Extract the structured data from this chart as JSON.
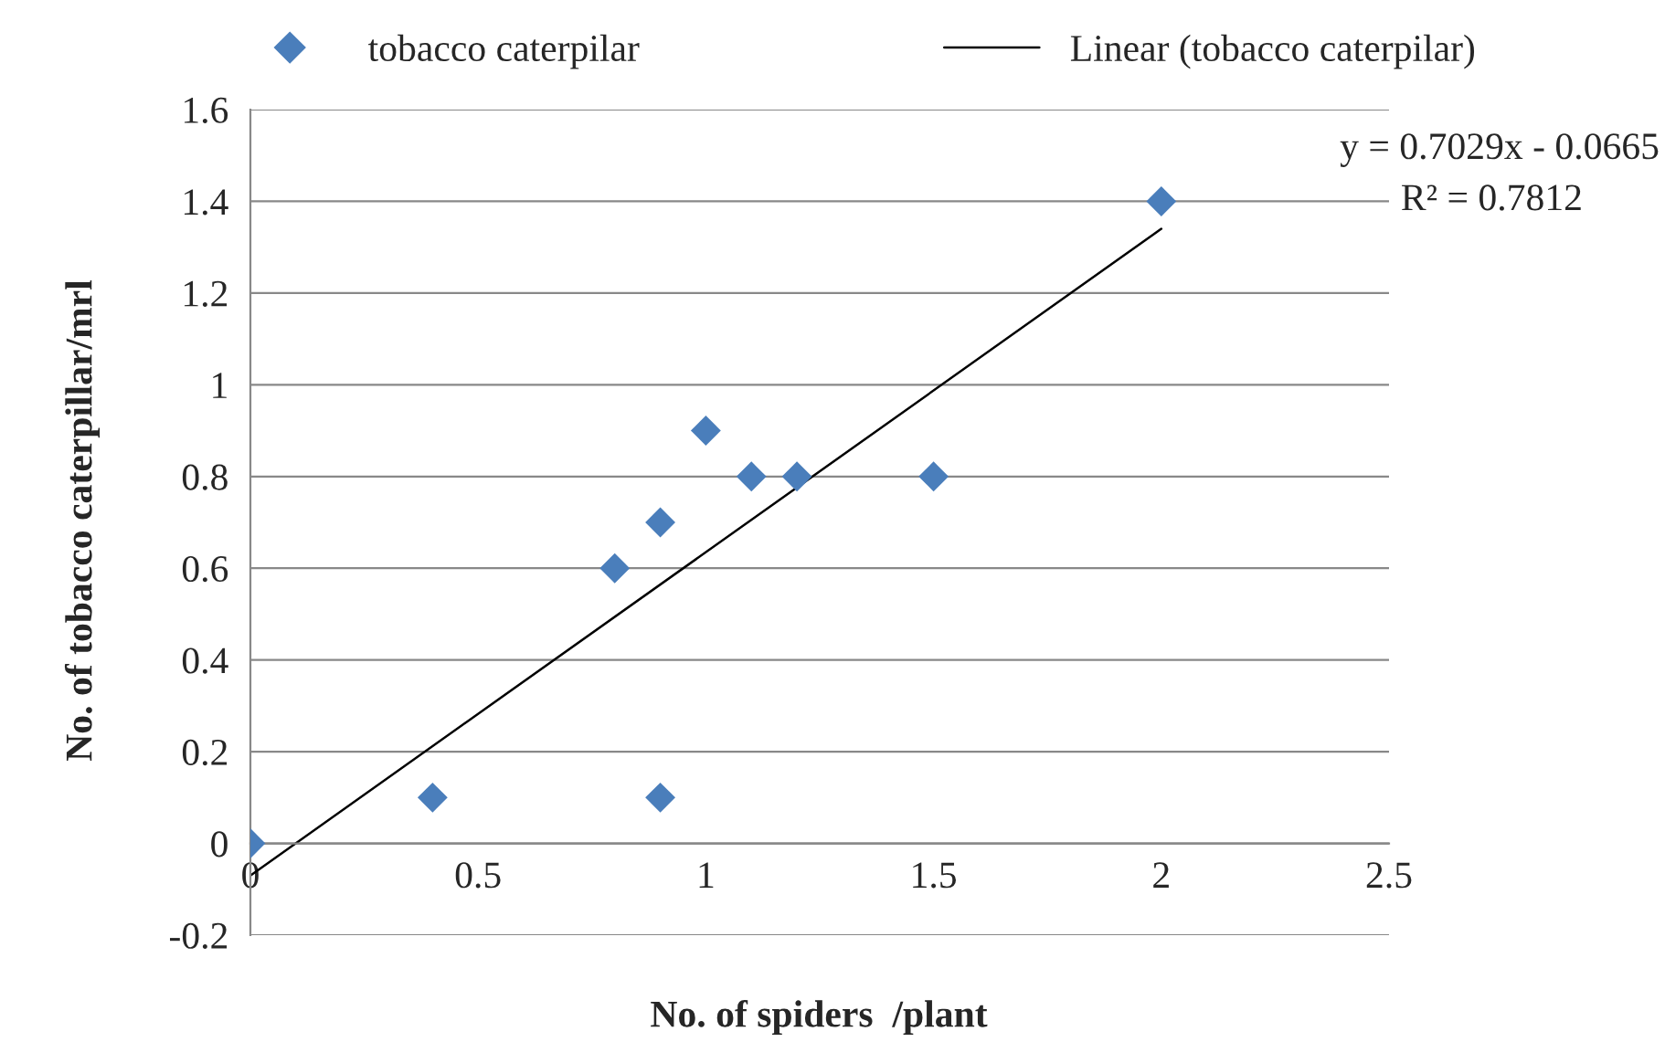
{
  "chart_data": {
    "type": "scatter",
    "xlabel": "No. of spiders  /plant",
    "ylabel": "No. of tobacco caterpillar/mrl",
    "series": [
      {
        "name": "tobacco caterpilar",
        "color": "#4a7ebb",
        "marker": "diamond",
        "x": [
          0,
          0.4,
          0.8,
          0.9,
          0.9,
          1,
          1.1,
          1.2,
          1.5,
          2
        ],
        "values": [
          0,
          0.1,
          0.6,
          0.7,
          0.1,
          0.9,
          0.8,
          0.8,
          0.8,
          1.4
        ]
      },
      {
        "name": "Linear (tobacco caterpilar)",
        "type": "line",
        "color": "#000000",
        "line_style": "solid",
        "x": [
          0,
          2
        ],
        "values": [
          -0.07,
          1.34
        ]
      }
    ],
    "annotations": [
      {
        "text": "y = 0.7029x - 0.0665"
      },
      {
        "text": "R² = 0.7812"
      }
    ],
    "xlim": [
      0,
      2.5
    ],
    "xticks": [
      0,
      0.5,
      1,
      1.5,
      2,
      2.5
    ],
    "ylim": [
      -0.2,
      1.6
    ],
    "yticks": [
      -0.2,
      0,
      0.2,
      0.4,
      0.6,
      0.8,
      1,
      1.2,
      1.4,
      1.6
    ],
    "grid": "y",
    "legend": "top"
  }
}
